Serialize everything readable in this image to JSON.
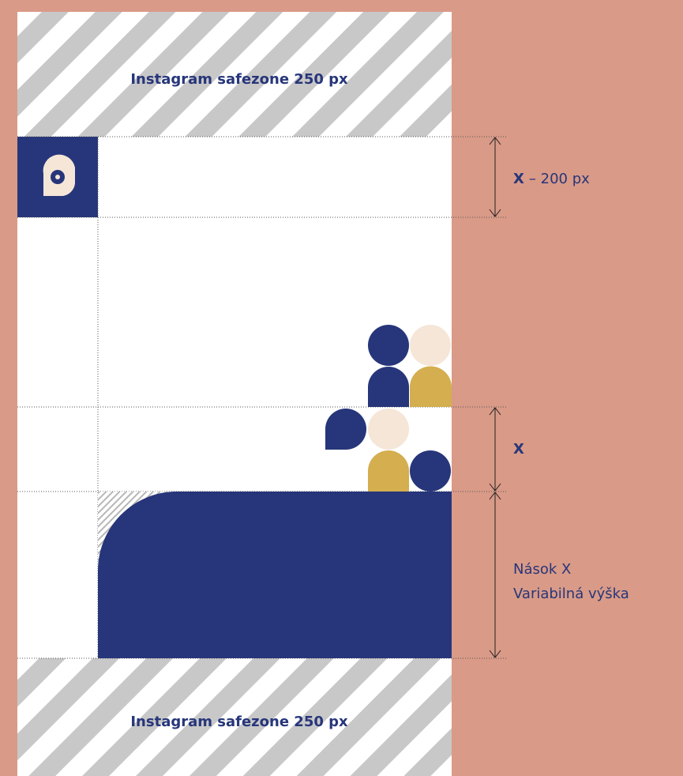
{
  "safezone_top": {
    "label": "Instagram safezone 250 px"
  },
  "safezone_bottom": {
    "label": "Instagram safezone 250 px"
  },
  "measure_header": {
    "symbol": "X",
    "text": "– 200 px"
  },
  "measure_spacer": {
    "symbol": "X"
  },
  "measure_footer": {
    "line1": "Nások X",
    "line2": "Variabilná výška"
  }
}
